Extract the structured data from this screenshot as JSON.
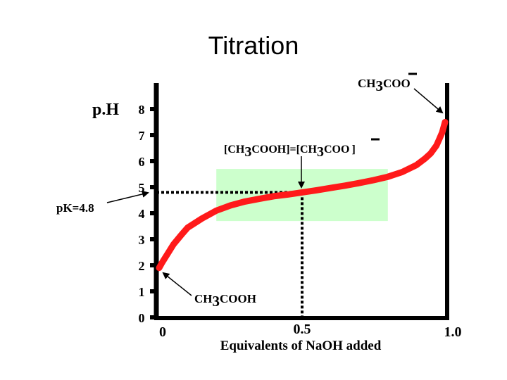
{
  "slide": {
    "title": "Titration"
  },
  "chart_data": {
    "type": "line",
    "title": "Titration",
    "xlabel": "Equivalents of NaOH added",
    "ylabel": "p.H",
    "xlim": [
      0,
      1.0
    ],
    "ylim": [
      0,
      8
    ],
    "x_tick_labels": [
      "0",
      "0.5",
      "1.0"
    ],
    "x_ticks": [
      0,
      0.5,
      1.0
    ],
    "y_tick_labels": [
      "0",
      "1",
      "2",
      "3",
      "4",
      "5",
      "6",
      "7",
      "8"
    ],
    "y_ticks": [
      0,
      1,
      2,
      3,
      4,
      5,
      6,
      7,
      8
    ],
    "series": [
      {
        "color": "#ff1a1a",
        "x": [
          0.0,
          0.01,
          0.03,
          0.05,
          0.08,
          0.1,
          0.15,
          0.2,
          0.25,
          0.3,
          0.35,
          0.4,
          0.45,
          0.5,
          0.55,
          0.6,
          0.65,
          0.7,
          0.75,
          0.8,
          0.85,
          0.9,
          0.93,
          0.95,
          0.97,
          0.98,
          0.99,
          1.0
        ],
        "y": [
          1.9,
          2.1,
          2.45,
          2.8,
          3.2,
          3.45,
          3.8,
          4.1,
          4.3,
          4.45,
          4.55,
          4.65,
          4.72,
          4.8,
          4.88,
          4.97,
          5.06,
          5.16,
          5.27,
          5.4,
          5.58,
          5.85,
          6.1,
          6.3,
          6.6,
          6.85,
          7.1,
          7.5
        ]
      }
    ],
    "buffer_region": {
      "x": [
        0.2,
        0.8
      ],
      "y": [
        3.7,
        5.7
      ],
      "color": "#ccffcc"
    },
    "pk_reference": {
      "x": 0.5,
      "y": 4.8
    },
    "annotations": [
      {
        "id": "pk",
        "prefix": "pK=4.8",
        "sub": "",
        "suffix": ""
      },
      {
        "id": "start",
        "prefix": "CH",
        "sub": "3",
        "suffix": "COOH"
      },
      {
        "id": "mid",
        "prefix": "[CH",
        "sub": "3",
        "suffix": "COOH]=[CH",
        "sub2": "3",
        "suffix2": "COO",
        "suffix3": "]"
      },
      {
        "id": "end",
        "prefix": "CH",
        "sub": "3",
        "suffix": "COO"
      }
    ],
    "grid": false,
    "legend": "none"
  }
}
